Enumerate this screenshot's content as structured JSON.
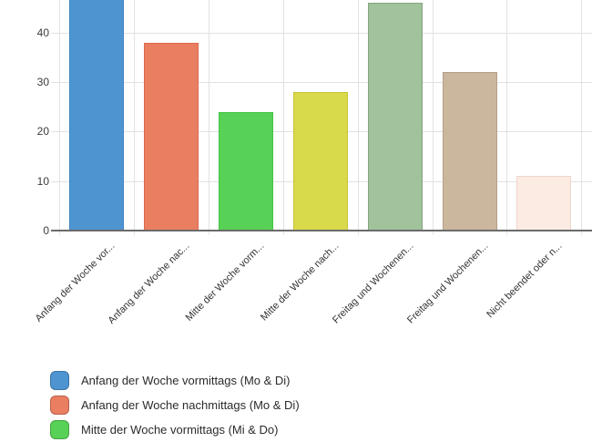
{
  "chart_data": {
    "type": "bar",
    "title": "",
    "xlabel": "",
    "ylabel": "",
    "categories": [
      "Anfang der Woche vor...",
      "Anfang der Woche nac...",
      "Mitte der Woche vorm...",
      "Mitte der Woche nach...",
      "Freitag und Wochenen...",
      "Freitag und Wochenen...",
      "Nicht beendet oder n..."
    ],
    "values": [
      48,
      38,
      24,
      28,
      46,
      32,
      11
    ],
    "bar_colors": [
      "#4d94d1",
      "#ea7e61",
      "#58d157",
      "#d9d94c",
      "#a0c39b",
      "#cbb79e",
      "#fcebe3"
    ],
    "bar_border_colors": [
      "#3f85c2",
      "#da6a4c",
      "#46c245",
      "#c6c633",
      "#82a57d",
      "#b4a088",
      "#eed6c9"
    ],
    "y_ticks": [
      0,
      10,
      20,
      30,
      40
    ],
    "y_tick_labels": [
      "0",
      "10",
      "20",
      "30",
      "40"
    ],
    "ylim_visible": [
      0,
      46.6
    ],
    "grid": true,
    "first_bar_clipped_at_top": true,
    "legend": {
      "position": "bottom-left",
      "entries": [
        {
          "label": "Anfang der Woche vormittags (Mo & Di)",
          "color": "#4d94d1"
        },
        {
          "label": "Anfang der Woche nachmittags (Mo & Di)",
          "color": "#ea7e61"
        },
        {
          "label": "Mitte der Woche vormittags (Mi & Do)",
          "color": "#58d157"
        }
      ]
    }
  },
  "colors": {
    "background": "#ffffff",
    "gridline": "#e2e2e2",
    "axis_line": "#6b6b6b",
    "tick_text": "#3c3c3c",
    "x_label_text": "#333333",
    "legend_text": "#2b2b2b"
  }
}
